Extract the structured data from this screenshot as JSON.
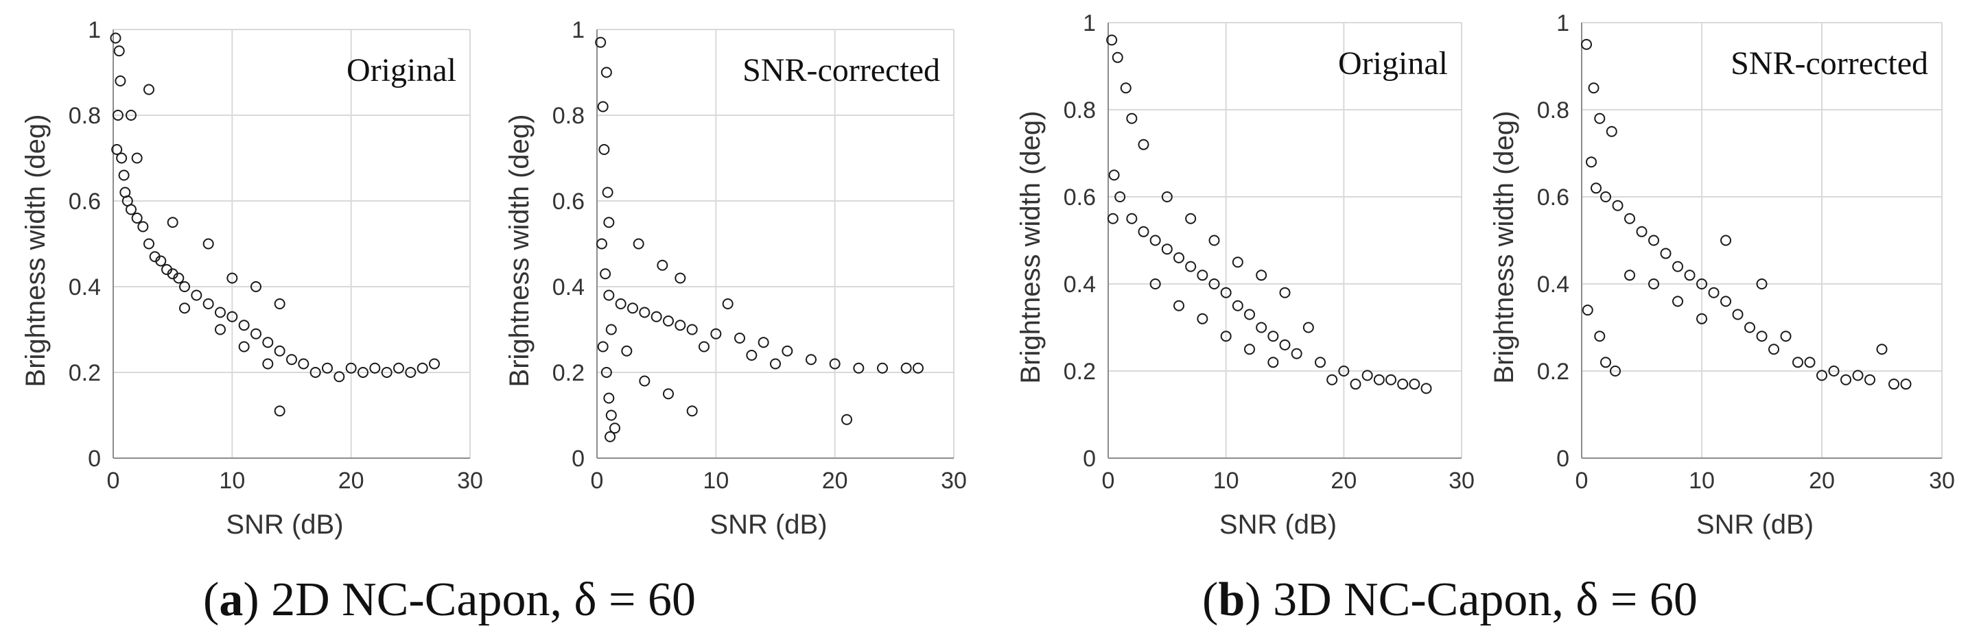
{
  "captions": [
    {
      "letter": "a",
      "text": "2D NC-Capon, δ = 60"
    },
    {
      "letter": "b",
      "text": "3D NC-Capon, δ = 60"
    }
  ],
  "chart_data": [
    {
      "type": "scatter",
      "panel": "a",
      "label": "Original",
      "xlabel": "SNR (dB)",
      "ylabel": "Brightness width (deg)",
      "xlim": [
        0,
        30
      ],
      "ylim": [
        0,
        1
      ],
      "xticks": [
        "0",
        "10",
        "20",
        "30"
      ],
      "yticks": [
        "0",
        "0.2",
        "0.4",
        "0.6",
        "0.8",
        "1"
      ],
      "grid": true,
      "series": [
        {
          "name": "original-2d",
          "points": [
            [
              0.2,
              0.98
            ],
            [
              0.5,
              0.95
            ],
            [
              0.6,
              0.88
            ],
            [
              0.4,
              0.8
            ],
            [
              0.3,
              0.72
            ],
            [
              0.7,
              0.7
            ],
            [
              0.9,
              0.66
            ],
            [
              1.0,
              0.62
            ],
            [
              1.2,
              0.6
            ],
            [
              1.5,
              0.58
            ],
            [
              2.0,
              0.56
            ],
            [
              2.5,
              0.54
            ],
            [
              3.0,
              0.5
            ],
            [
              3.5,
              0.47
            ],
            [
              4.0,
              0.46
            ],
            [
              4.5,
              0.44
            ],
            [
              5.0,
              0.43
            ],
            [
              5.5,
              0.42
            ],
            [
              6.0,
              0.4
            ],
            [
              7.0,
              0.38
            ],
            [
              8.0,
              0.36
            ],
            [
              9.0,
              0.34
            ],
            [
              10.0,
              0.33
            ],
            [
              11.0,
              0.31
            ],
            [
              12.0,
              0.29
            ],
            [
              13.0,
              0.27
            ],
            [
              14.0,
              0.25
            ],
            [
              15.0,
              0.23
            ],
            [
              16.0,
              0.22
            ],
            [
              18.0,
              0.21
            ],
            [
              20.0,
              0.21
            ],
            [
              22.0,
              0.21
            ],
            [
              24.0,
              0.21
            ],
            [
              26.0,
              0.21
            ],
            [
              27.0,
              0.22
            ],
            [
              14.0,
              0.11
            ],
            [
              3.0,
              0.86
            ],
            [
              1.5,
              0.8
            ],
            [
              2.0,
              0.7
            ],
            [
              5.0,
              0.55
            ],
            [
              8.0,
              0.5
            ],
            [
              10.0,
              0.42
            ],
            [
              12.0,
              0.4
            ],
            [
              14.0,
              0.36
            ],
            [
              6.0,
              0.35
            ],
            [
              9.0,
              0.3
            ],
            [
              11.0,
              0.26
            ],
            [
              13.0,
              0.22
            ],
            [
              17.0,
              0.2
            ],
            [
              19.0,
              0.19
            ],
            [
              21.0,
              0.2
            ],
            [
              23.0,
              0.2
            ],
            [
              25.0,
              0.2
            ]
          ]
        }
      ]
    },
    {
      "type": "scatter",
      "panel": "a",
      "label": "SNR-corrected",
      "xlabel": "SNR (dB)",
      "ylabel": "Brightness width (deg)",
      "xlim": [
        0,
        30
      ],
      "ylim": [
        0,
        1
      ],
      "xticks": [
        "0",
        "10",
        "20",
        "30"
      ],
      "yticks": [
        "0",
        "0.2",
        "0.4",
        "0.6",
        "0.8",
        "1"
      ],
      "grid": true,
      "series": [
        {
          "name": "corrected-2d",
          "points": [
            [
              0.3,
              0.97
            ],
            [
              0.8,
              0.9
            ],
            [
              0.5,
              0.82
            ],
            [
              0.6,
              0.72
            ],
            [
              0.9,
              0.62
            ],
            [
              1.0,
              0.55
            ],
            [
              0.4,
              0.5
            ],
            [
              0.7,
              0.43
            ],
            [
              1.0,
              0.38
            ],
            [
              1.2,
              0.3
            ],
            [
              0.5,
              0.26
            ],
            [
              0.8,
              0.2
            ],
            [
              1.0,
              0.14
            ],
            [
              1.2,
              0.1
            ],
            [
              1.5,
              0.07
            ],
            [
              1.1,
              0.05
            ],
            [
              2.0,
              0.36
            ],
            [
              3.0,
              0.35
            ],
            [
              4.0,
              0.34
            ],
            [
              5.0,
              0.33
            ],
            [
              6.0,
              0.32
            ],
            [
              7.0,
              0.31
            ],
            [
              8.0,
              0.3
            ],
            [
              10.0,
              0.29
            ],
            [
              12.0,
              0.28
            ],
            [
              14.0,
              0.27
            ],
            [
              16.0,
              0.25
            ],
            [
              18.0,
              0.23
            ],
            [
              20.0,
              0.22
            ],
            [
              22.0,
              0.21
            ],
            [
              24.0,
              0.21
            ],
            [
              26.0,
              0.21
            ],
            [
              27.0,
              0.21
            ],
            [
              3.5,
              0.5
            ],
            [
              5.5,
              0.45
            ],
            [
              7.0,
              0.42
            ],
            [
              11.0,
              0.36
            ],
            [
              4.0,
              0.18
            ],
            [
              6.0,
              0.15
            ],
            [
              8.0,
              0.11
            ],
            [
              21.0,
              0.09
            ],
            [
              2.5,
              0.25
            ],
            [
              9.0,
              0.26
            ],
            [
              13.0,
              0.24
            ],
            [
              15.0,
              0.22
            ]
          ]
        }
      ]
    },
    {
      "type": "scatter",
      "panel": "b",
      "label": "Original",
      "xlabel": "SNR (dB)",
      "ylabel": "Brightness width (deg)",
      "xlim": [
        0,
        30
      ],
      "ylim": [
        0,
        1
      ],
      "xticks": [
        "0",
        "10",
        "20",
        "30"
      ],
      "yticks": [
        "0",
        "0.2",
        "0.4",
        "0.6",
        "0.8",
        "1"
      ],
      "grid": true,
      "series": [
        {
          "name": "original-3d",
          "points": [
            [
              0.3,
              0.96
            ],
            [
              0.8,
              0.92
            ],
            [
              1.5,
              0.85
            ],
            [
              2.0,
              0.78
            ],
            [
              3.0,
              0.72
            ],
            [
              0.5,
              0.65
            ],
            [
              1.0,
              0.6
            ],
            [
              0.4,
              0.55
            ],
            [
              2.0,
              0.55
            ],
            [
              3.0,
              0.52
            ],
            [
              4.0,
              0.5
            ],
            [
              5.0,
              0.48
            ],
            [
              6.0,
              0.46
            ],
            [
              7.0,
              0.44
            ],
            [
              8.0,
              0.42
            ],
            [
              9.0,
              0.4
            ],
            [
              10.0,
              0.38
            ],
            [
              11.0,
              0.35
            ],
            [
              12.0,
              0.33
            ],
            [
              13.0,
              0.3
            ],
            [
              14.0,
              0.28
            ],
            [
              15.0,
              0.26
            ],
            [
              16.0,
              0.24
            ],
            [
              18.0,
              0.22
            ],
            [
              20.0,
              0.2
            ],
            [
              22.0,
              0.19
            ],
            [
              24.0,
              0.18
            ],
            [
              26.0,
              0.17
            ],
            [
              27.0,
              0.16
            ],
            [
              5.0,
              0.6
            ],
            [
              7.0,
              0.55
            ],
            [
              9.0,
              0.5
            ],
            [
              11.0,
              0.45
            ],
            [
              13.0,
              0.42
            ],
            [
              15.0,
              0.38
            ],
            [
              17.0,
              0.3
            ],
            [
              4.0,
              0.4
            ],
            [
              6.0,
              0.35
            ],
            [
              8.0,
              0.32
            ],
            [
              10.0,
              0.28
            ],
            [
              12.0,
              0.25
            ],
            [
              14.0,
              0.22
            ],
            [
              19.0,
              0.18
            ],
            [
              21.0,
              0.17
            ],
            [
              23.0,
              0.18
            ],
            [
              25.0,
              0.17
            ]
          ]
        }
      ]
    },
    {
      "type": "scatter",
      "panel": "b",
      "label": "SNR-corrected",
      "xlabel": "SNR (dB)",
      "ylabel": "Brightness width (deg)",
      "xlim": [
        0,
        30
      ],
      "ylim": [
        0,
        1
      ],
      "xticks": [
        "0",
        "10",
        "20",
        "30"
      ],
      "yticks": [
        "0",
        "0.2",
        "0.4",
        "0.6",
        "0.8",
        "1"
      ],
      "grid": true,
      "series": [
        {
          "name": "corrected-3d",
          "points": [
            [
              0.4,
              0.95
            ],
            [
              1.0,
              0.85
            ],
            [
              1.5,
              0.78
            ],
            [
              2.5,
              0.75
            ],
            [
              0.8,
              0.68
            ],
            [
              1.2,
              0.62
            ],
            [
              2.0,
              0.6
            ],
            [
              3.0,
              0.58
            ],
            [
              4.0,
              0.55
            ],
            [
              5.0,
              0.52
            ],
            [
              6.0,
              0.5
            ],
            [
              7.0,
              0.47
            ],
            [
              8.0,
              0.44
            ],
            [
              9.0,
              0.42
            ],
            [
              10.0,
              0.4
            ],
            [
              11.0,
              0.38
            ],
            [
              12.0,
              0.36
            ],
            [
              13.0,
              0.33
            ],
            [
              14.0,
              0.3
            ],
            [
              15.0,
              0.28
            ],
            [
              16.0,
              0.25
            ],
            [
              18.0,
              0.22
            ],
            [
              20.0,
              0.19
            ],
            [
              22.0,
              0.18
            ],
            [
              24.0,
              0.18
            ],
            [
              26.0,
              0.17
            ],
            [
              27.0,
              0.17
            ],
            [
              0.5,
              0.34
            ],
            [
              1.5,
              0.28
            ],
            [
              2.0,
              0.22
            ],
            [
              2.8,
              0.2
            ],
            [
              4.0,
              0.42
            ],
            [
              6.0,
              0.4
            ],
            [
              8.0,
              0.36
            ],
            [
              10.0,
              0.32
            ],
            [
              12.0,
              0.5
            ],
            [
              15.0,
              0.4
            ],
            [
              17.0,
              0.28
            ],
            [
              19.0,
              0.22
            ],
            [
              21.0,
              0.2
            ],
            [
              23.0,
              0.19
            ],
            [
              25.0,
              0.25
            ]
          ]
        }
      ]
    }
  ]
}
